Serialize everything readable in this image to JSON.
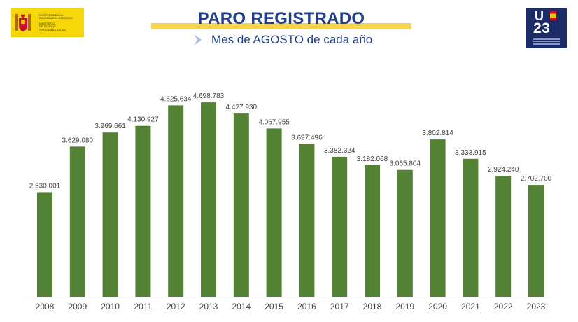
{
  "header": {
    "title": "PARO REGISTRADO",
    "subtitle": "Mes de AGOSTO de cada año",
    "left_logo_lines": [
      "VICEPRESIDENCIA",
      "SEGUNDA DEL GOBIERNO",
      "MINISTERIO",
      "DE TRABAJO",
      "Y ECONOMÍA SOCIAL"
    ],
    "right_logo_letter": "U",
    "right_logo_number": "23"
  },
  "colors": {
    "bar": "#548235",
    "title": "#1f3f8e",
    "title_bar": "#f7d44c",
    "logo_left_bg": "#f6d80a",
    "logo_right_bg": "#1b2b68",
    "label": "#404040"
  },
  "chart_data": {
    "type": "bar",
    "title": "PARO REGISTRADO",
    "subtitle": "Mes de AGOSTO de cada año",
    "categories": [
      "2008",
      "2009",
      "2010",
      "2011",
      "2012",
      "2013",
      "2014",
      "2015",
      "2016",
      "2017",
      "2018",
      "2019",
      "2020",
      "2021",
      "2022",
      "2023"
    ],
    "values": [
      2530001,
      3629080,
      3969661,
      4130927,
      4625634,
      4698783,
      4427930,
      4067955,
      3697496,
      3382324,
      3182068,
      3065804,
      3802814,
      3333915,
      2924240,
      2702700
    ],
    "data_labels": [
      "2.530.001",
      "3.629.080",
      "3.969.661",
      "4.130.927",
      "4.625.634",
      "4.698.783",
      "4.427.930",
      "4.067.955",
      "3.697.496",
      "3.382.324",
      "3.182.068",
      "3.065.804",
      "3.802.814",
      "3.333.915",
      "2.924.240",
      "2.702.700"
    ],
    "ylim": [
      0,
      4700000
    ],
    "grid": false,
    "legend": "none"
  }
}
